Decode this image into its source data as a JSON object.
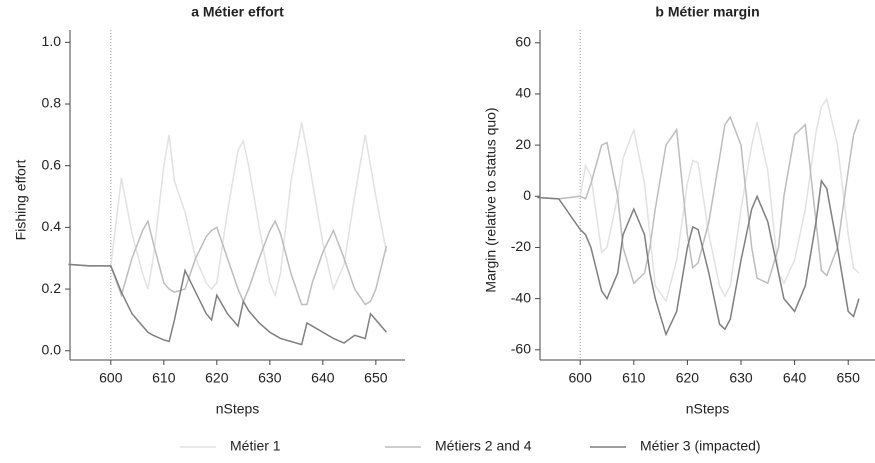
{
  "chart_data": [
    {
      "type": "line",
      "title": "a Métier effort",
      "xlabel": "nSteps",
      "ylabel": "Fishing effort",
      "x": [
        592,
        596,
        600,
        602,
        604,
        606,
        607,
        608,
        610,
        611,
        612,
        614,
        616,
        618,
        619,
        620,
        622,
        624,
        625,
        626,
        628,
        630,
        631,
        632,
        634,
        636,
        637,
        638,
        640,
        642,
        644,
        646,
        648,
        649,
        650,
        652
      ],
      "series": [
        {
          "name": "Métier 1",
          "color": "#e2e2e2",
          "values": [
            0.28,
            0.275,
            0.275,
            0.56,
            0.38,
            0.25,
            0.2,
            0.3,
            0.6,
            0.7,
            0.55,
            0.45,
            0.3,
            0.22,
            0.2,
            0.22,
            0.45,
            0.65,
            0.68,
            0.6,
            0.4,
            0.22,
            0.18,
            0.25,
            0.55,
            0.74,
            0.65,
            0.55,
            0.35,
            0.2,
            0.28,
            0.5,
            0.7,
            0.6,
            0.5,
            0.32
          ]
        },
        {
          "name": "Métiers 2 and 4",
          "color": "#bdbdbd",
          "values": [
            0.28,
            0.275,
            0.275,
            0.18,
            0.3,
            0.39,
            0.42,
            0.35,
            0.22,
            0.2,
            0.19,
            0.2,
            0.3,
            0.37,
            0.39,
            0.4,
            0.3,
            0.2,
            0.16,
            0.2,
            0.3,
            0.39,
            0.42,
            0.38,
            0.25,
            0.15,
            0.15,
            0.22,
            0.32,
            0.39,
            0.3,
            0.2,
            0.15,
            0.16,
            0.2,
            0.34
          ]
        },
        {
          "name": "Métier 3 (impacted)",
          "color": "#7f7f7f",
          "values": [
            0.28,
            0.275,
            0.275,
            0.19,
            0.12,
            0.08,
            0.06,
            0.05,
            0.035,
            0.03,
            0.1,
            0.26,
            0.19,
            0.12,
            0.1,
            0.18,
            0.12,
            0.08,
            0.16,
            0.13,
            0.09,
            0.06,
            0.05,
            0.04,
            0.03,
            0.02,
            0.09,
            0.08,
            0.06,
            0.04,
            0.025,
            0.05,
            0.04,
            0.12,
            0.1,
            0.06
          ]
        }
      ],
      "xlim": [
        592.3,
        655.5
      ],
      "ylim": [
        -0.03,
        1.04
      ],
      "xticks": [
        600,
        610,
        620,
        630,
        640,
        650
      ],
      "yticks": [
        {
          "value": 0,
          "label": "0.0"
        },
        0.2,
        0.4,
        0.6,
        0.8,
        {
          "value": 1,
          "label": "1.0"
        }
      ],
      "vline": 600
    },
    {
      "type": "line",
      "title": "b Métier margin",
      "xlabel": "nSteps",
      "ylabel": "Margin (relative to status quo)",
      "x": [
        592,
        596,
        600,
        601,
        602,
        604,
        605,
        607,
        608,
        610,
        612,
        613,
        614,
        616,
        618,
        620,
        621,
        622,
        624,
        626,
        627,
        628,
        630,
        632,
        633,
        635,
        637,
        638,
        640,
        642,
        644,
        645,
        646,
        648,
        650,
        651,
        652
      ],
      "series": [
        {
          "color": "#e2e2e2",
          "values": [
            -0.5,
            -1,
            0,
            12,
            8,
            -22,
            -20,
            0,
            15,
            26,
            5,
            -15,
            -35,
            -41,
            -25,
            5,
            14,
            13,
            -15,
            -35,
            -39,
            -35,
            -5,
            20,
            29,
            10,
            -30,
            -34,
            -25,
            -5,
            25,
            35,
            38,
            20,
            -15,
            -28,
            -30
          ]
        },
        {
          "color": "#bdbdbd",
          "values": [
            -0.5,
            -1,
            0,
            -1,
            5,
            20,
            21,
            0,
            -20,
            -34,
            -30,
            -20,
            -5,
            20,
            26,
            -15,
            -28,
            -26,
            -10,
            15,
            28,
            31,
            20,
            -20,
            -32,
            -34,
            -20,
            0,
            24,
            28,
            -10,
            -29,
            -31,
            -20,
            10,
            24,
            30
          ]
        },
        {
          "color": "#7f7f7f",
          "values": [
            -0.5,
            -1,
            -13,
            -15,
            -20,
            -37,
            -40,
            -30,
            -15,
            -5,
            -15,
            -30,
            -40,
            -54,
            -45,
            -20,
            -12,
            -13,
            -30,
            -50,
            -52,
            -48,
            -25,
            -5,
            0,
            -10,
            -30,
            -40,
            -45,
            -35,
            -10,
            6,
            3,
            -20,
            -45,
            -47,
            -40
          ]
        }
      ],
      "xlim": [
        592.5,
        655
      ],
      "ylim": [
        -64,
        65
      ],
      "xticks": [
        600,
        610,
        620,
        630,
        640,
        650
      ],
      "yticks": [
        -60,
        -40,
        -20,
        0,
        20,
        40,
        60
      ],
      "vline": 600
    }
  ]
}
